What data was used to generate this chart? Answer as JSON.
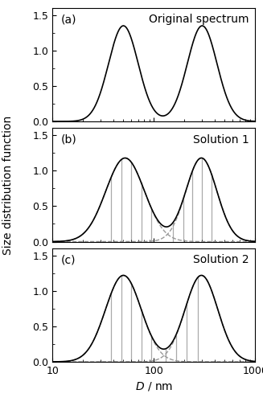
{
  "title_a": "Original spectrum",
  "title_b": "Solution 1",
  "title_c": "Solution 2",
  "label_a": "(a)",
  "label_b": "(b)",
  "label_c": "(c)",
  "xlabel": "D / nm",
  "ylabel": "Size distribution function",
  "D1": 50,
  "D2": 300,
  "sigma1": 1.4,
  "sigma2": 1.4,
  "D1_b": 52,
  "D2_b": 295,
  "sigma1_b": 1.55,
  "sigma2_b": 1.42,
  "D1_c": 50,
  "D2_c": 295,
  "sigma1_c": 1.5,
  "sigma2_c": 1.45,
  "xlim": [
    10,
    1000
  ],
  "ylim": [
    0.0,
    1.6
  ],
  "yticks": [
    0.0,
    0.5,
    1.0,
    1.5
  ],
  "line_color": "#000000",
  "dash_color": "#999999",
  "vline_color": "#aaaaaa",
  "vlines_b_group1": [
    38,
    48,
    60,
    75,
    95
  ],
  "vlines_b_group2": [
    155,
    195,
    240,
    300,
    370
  ],
  "vlines_c_group1": [
    38,
    48,
    60,
    75,
    95
  ],
  "vlines_c_group2": [
    130,
    165,
    210,
    270
  ],
  "peak_amplitude_a": 1.35,
  "peak_amplitude_b": 1.18,
  "peak_amplitude_c": 1.22
}
